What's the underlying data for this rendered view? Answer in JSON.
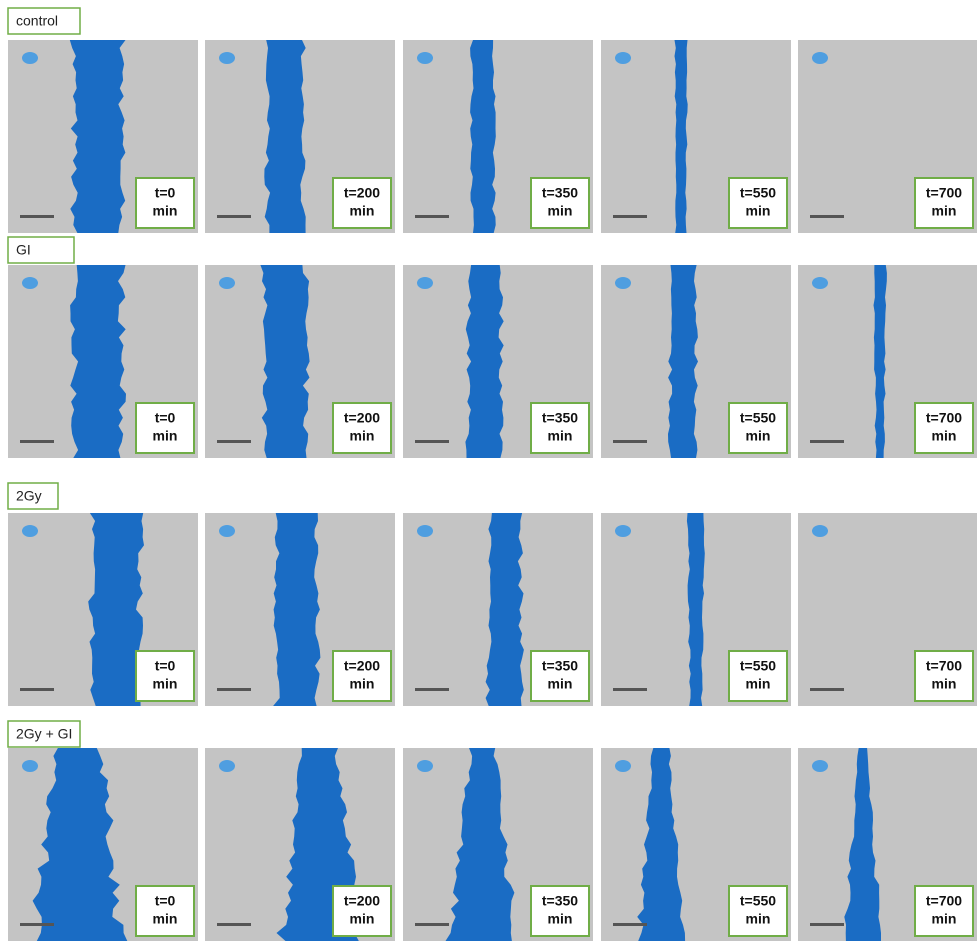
{
  "rows": [
    {
      "label": "control",
      "panels": [
        [
          "t=0",
          "min"
        ],
        [
          "t=200",
          "min"
        ],
        [
          "t=350",
          "min"
        ],
        [
          "t=550",
          "min"
        ],
        [
          "t=700",
          "min"
        ]
      ]
    },
    {
      "label": "GI",
      "panels": [
        [
          "t=0",
          "min"
        ],
        [
          "t=200",
          "min"
        ],
        [
          "t=350",
          "min"
        ],
        [
          "t=550",
          "min"
        ],
        [
          "t=700",
          "min"
        ]
      ]
    },
    {
      "label": "2Gy",
      "panels": [
        [
          "t=0",
          "min"
        ],
        [
          "t=200",
          "min"
        ],
        [
          "t=350",
          "min"
        ],
        [
          "t=550",
          "min"
        ],
        [
          "t=700",
          "min"
        ]
      ]
    },
    {
      "label": "2Gy + GI",
      "panels": [
        [
          "t=0",
          "min"
        ],
        [
          "t=200",
          "min"
        ],
        [
          "t=350",
          "min"
        ],
        [
          "t=550",
          "min"
        ],
        [
          "t=700",
          "min"
        ]
      ]
    }
  ]
}
